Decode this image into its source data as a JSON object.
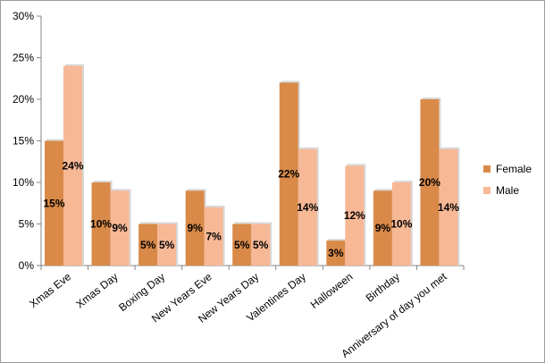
{
  "chart_data": {
    "type": "bar",
    "categories": [
      "Xmas Eve",
      "Xmas Day",
      "Boxing Day",
      "New Years Eve",
      "New Years Day",
      "Valentines Day",
      "Halloween",
      "Birthday",
      "Anniversary of day you met"
    ],
    "series": [
      {
        "name": "Female",
        "color": "#d98a48",
        "values": [
          15,
          10,
          5,
          9,
          5,
          22,
          3,
          9,
          20
        ],
        "labels": [
          "15%",
          "10%",
          "5%",
          "9%",
          "5%",
          "22%",
          "3%",
          "9%",
          "20%"
        ]
      },
      {
        "name": "Male",
        "color": "#f7b896",
        "values": [
          24,
          9,
          5,
          7,
          5,
          14,
          12,
          10,
          14
        ],
        "labels": [
          "24%",
          "9%",
          "5%",
          "7%",
          "5%",
          "14%",
          "12%",
          "10%",
          "14%"
        ]
      }
    ],
    "yticks": [
      "0%",
      "5%",
      "10%",
      "15%",
      "20%",
      "25%",
      "30%"
    ],
    "ylim": [
      0,
      30
    ],
    "title": "",
    "xlabel": "",
    "ylabel": "",
    "grid": false,
    "legend": "right"
  }
}
